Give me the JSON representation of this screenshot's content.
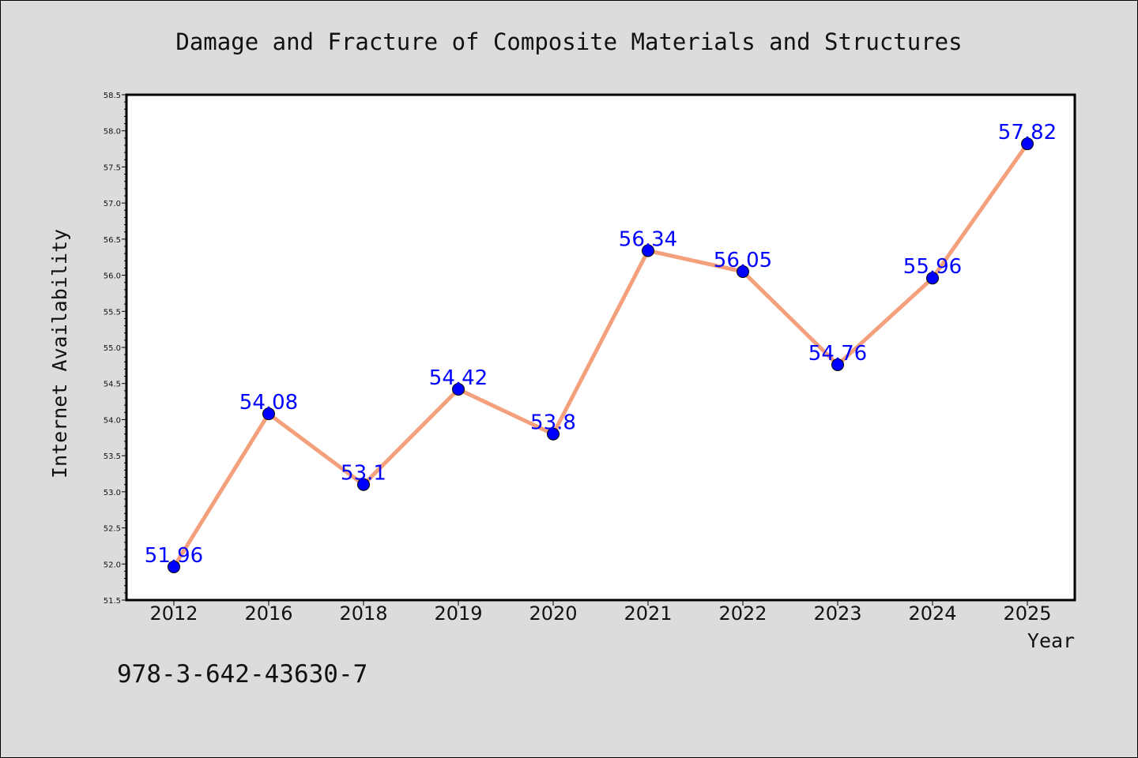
{
  "chart_data": {
    "type": "line",
    "title": "Damage and Fracture of Composite Materials and Structures",
    "xlabel": "Year",
    "ylabel": "Internet Availability",
    "categories": [
      "2012",
      "2016",
      "2018",
      "2019",
      "2020",
      "2021",
      "2022",
      "2023",
      "2024",
      "2025"
    ],
    "series": [
      {
        "values": [
          51.96,
          54.08,
          53.1,
          54.42,
          53.8,
          56.34,
          56.05,
          54.76,
          55.96,
          57.82
        ],
        "data_labels": [
          "51.96",
          "54.08",
          "53.1",
          "54.42",
          "53.8",
          "56.34",
          "56.05",
          "54.76",
          "55.96",
          "57.82"
        ],
        "line_color": "#f4a07c",
        "marker_color": "#0000ff"
      }
    ],
    "yticks": [
      "51.5",
      "52.0",
      "52.5",
      "53.0",
      "53.5",
      "54.0",
      "54.5",
      "55.0",
      "55.5",
      "56.0",
      "56.5",
      "57.0",
      "57.5",
      "58.0",
      "58.5"
    ],
    "ylim": [
      51.5,
      58.5
    ],
    "grid": false,
    "legend": "none",
    "background_color": "#dcdcdc",
    "plot_background_color": "#ffffff",
    "label_color": "#0000ff"
  },
  "footer": {
    "isbn": "978-3-642-43630-7"
  }
}
